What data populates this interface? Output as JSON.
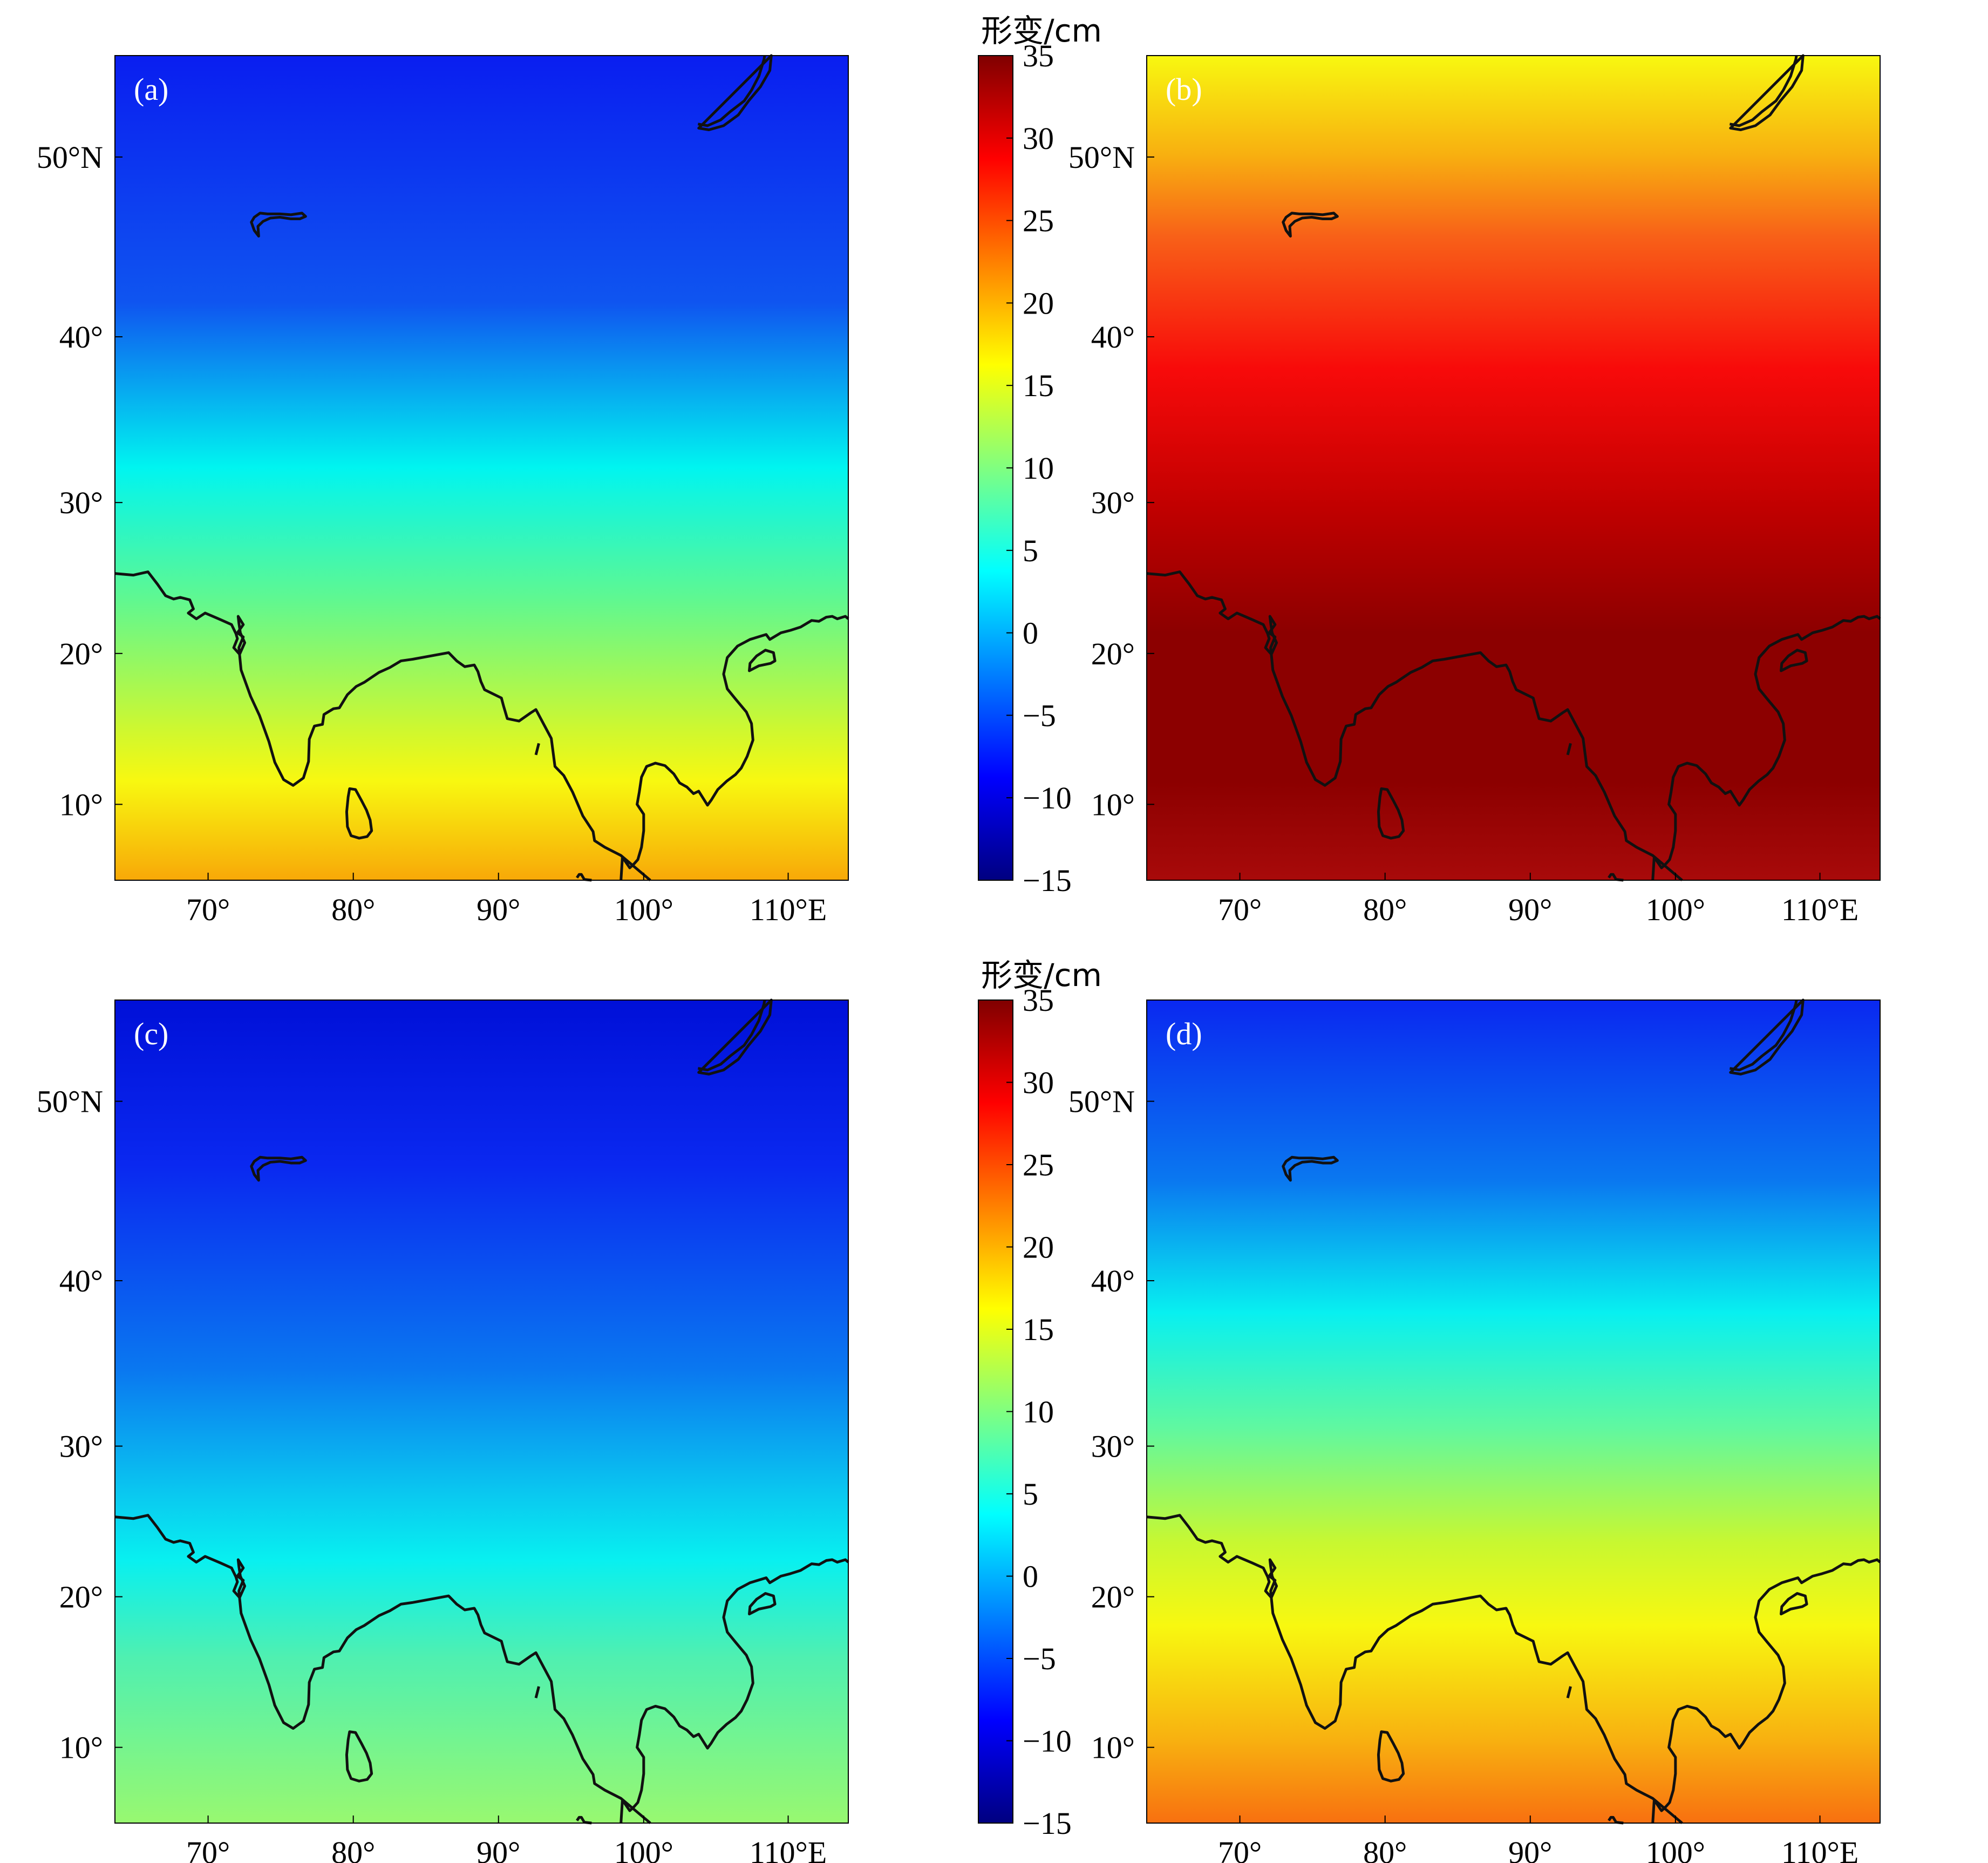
{
  "figure": {
    "panels": [
      {
        "id": "a",
        "label": "(a)",
        "colorbar_title": "形变/cm",
        "lat_labels": [
          "50°N",
          "40°",
          "30°",
          "20°",
          "10°"
        ],
        "lon_labels": [
          "70°",
          "80°",
          "90°",
          "100°",
          "110°E"
        ],
        "gradient_top_to_bottom": [
          [
            0,
            "#0a1ef0"
          ],
          [
            0.3,
            "#0f55f0"
          ],
          [
            0.5,
            "#00f5f0"
          ],
          [
            0.66,
            "#60f890"
          ],
          [
            0.82,
            "#d0f82e"
          ],
          [
            0.88,
            "#f8f810"
          ],
          [
            1,
            "#f8a808"
          ]
        ]
      },
      {
        "id": "b",
        "label": "(b)",
        "colorbar_title": "形变/cm",
        "lat_labels": [
          "50°N",
          "40°",
          "30°",
          "20°",
          "10°"
        ],
        "lon_labels": [
          "70°",
          "80°",
          "90°",
          "100°",
          "110°E"
        ],
        "gradient_top_to_bottom": [
          [
            0,
            "#f8f810"
          ],
          [
            0.12,
            "#f8b010"
          ],
          [
            0.22,
            "#f86018"
          ],
          [
            0.38,
            "#f80a0a"
          ],
          [
            0.55,
            "#c00000"
          ],
          [
            0.7,
            "#8c0000"
          ],
          [
            0.88,
            "#8c0000"
          ],
          [
            1,
            "#a80a0a"
          ]
        ]
      },
      {
        "id": "c",
        "label": "(c)",
        "colorbar_title": "形变/cm",
        "lat_labels": [
          "50°N",
          "40°",
          "30°",
          "20°",
          "10°"
        ],
        "lon_labels": [
          "70°",
          "80°",
          "90°",
          "100°",
          "110°E"
        ],
        "gradient_top_to_bottom": [
          [
            0,
            "#0010d8"
          ],
          [
            0.2,
            "#0a28f0"
          ],
          [
            0.45,
            "#0a78f0"
          ],
          [
            0.6,
            "#0ac8f0"
          ],
          [
            0.68,
            "#08f0f0"
          ],
          [
            0.8,
            "#50f0b0"
          ],
          [
            1,
            "#98f870"
          ]
        ]
      },
      {
        "id": "d",
        "label": "(d)",
        "colorbar_title": "形变/cm",
        "lat_labels": [
          "50°N",
          "40°",
          "30°",
          "20°",
          "10°"
        ],
        "lon_labels": [
          "70°",
          "80°",
          "90°",
          "100°",
          "110°E"
        ],
        "gradient_top_to_bottom": [
          [
            0,
            "#0a28f0"
          ],
          [
            0.22,
            "#0a78f0"
          ],
          [
            0.38,
            "#08f0f0"
          ],
          [
            0.52,
            "#60f8a0"
          ],
          [
            0.66,
            "#c8f830"
          ],
          [
            0.76,
            "#f8f810"
          ],
          [
            0.9,
            "#f8b010"
          ],
          [
            1,
            "#f87010"
          ]
        ]
      }
    ],
    "colorbar": {
      "ticks": [
        "35",
        "30",
        "25",
        "20",
        "15",
        "10",
        "5",
        "0",
        "−5",
        "−10",
        "−15"
      ],
      "range": [
        -15,
        35
      ],
      "colormap": "jet"
    }
  }
}
